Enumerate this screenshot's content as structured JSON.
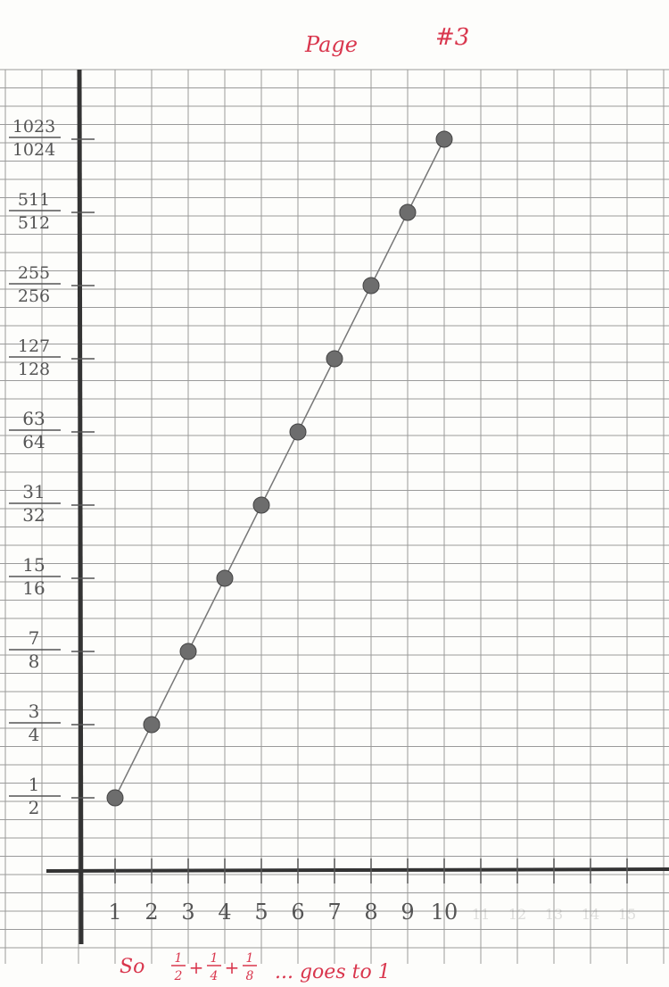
{
  "header": {
    "page_word": "Page",
    "page_number": "#3"
  },
  "footer": {
    "conclusion_prefix": "So",
    "conclusion_series": [
      "1/2",
      "1/4",
      "1/8"
    ],
    "conclusion_suffix": "... goes to 1"
  },
  "chart_data": {
    "type": "scatter",
    "connected": true,
    "title": "",
    "xlabel": "",
    "ylabel": "",
    "x": [
      1,
      2,
      3,
      4,
      5,
      6,
      7,
      8,
      9,
      10
    ],
    "y_labels": [
      "1/2",
      "3/4",
      "7/8",
      "15/16",
      "31/32",
      "63/64",
      "127/128",
      "255/256",
      "511/512",
      "1023/1024"
    ],
    "y": [
      0.5,
      0.75,
      0.875,
      0.9375,
      0.96875,
      0.984375,
      0.9921875,
      0.99609375,
      0.998046875,
      0.9990234375
    ],
    "x_tick_labels": [
      "1",
      "2",
      "3",
      "4",
      "5",
      "6",
      "7",
      "8",
      "9",
      "10",
      "11",
      "12",
      "13",
      "14",
      "15"
    ],
    "grid": true,
    "colors": {
      "ink": "#d9364d",
      "pencil": "#555555",
      "grid": "#9a9a9a",
      "axis": "#333333"
    }
  }
}
